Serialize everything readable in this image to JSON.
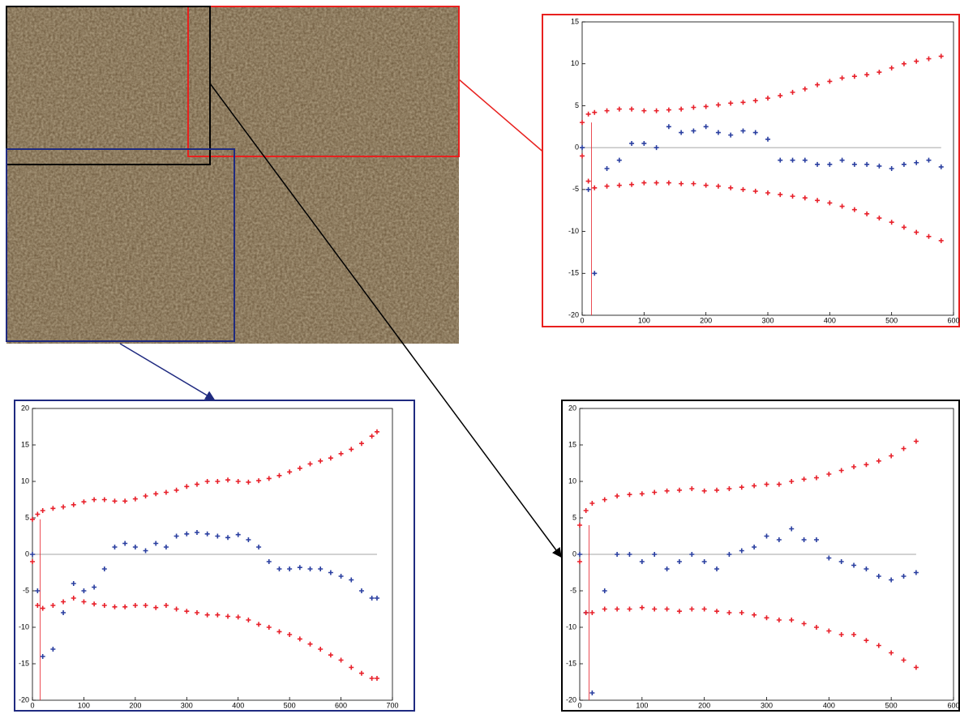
{
  "chart_data": [
    {
      "type": "scatter",
      "frame_color": "#e8201e",
      "xlim": [
        0,
        600
      ],
      "ylim": [
        -20,
        15
      ],
      "xticks": [
        0,
        100,
        200,
        300,
        400,
        500,
        600
      ],
      "yticks": [
        -20,
        -15,
        -10,
        -5,
        0,
        5,
        10,
        15
      ],
      "hline": 0,
      "vline": 15,
      "x": [
        0,
        10,
        20,
        40,
        60,
        80,
        100,
        120,
        140,
        160,
        180,
        200,
        220,
        240,
        260,
        280,
        300,
        320,
        340,
        360,
        380,
        400,
        420,
        440,
        460,
        480,
        500,
        520,
        540,
        560,
        580
      ],
      "series": [
        {
          "color": "#e8202a",
          "values": [
            3,
            4,
            4.2,
            4.4,
            4.6,
            4.6,
            4.4,
            4.4,
            4.5,
            4.6,
            4.8,
            4.9,
            5.1,
            5.3,
            5.4,
            5.6,
            5.9,
            6.2,
            6.6,
            7.0,
            7.5,
            7.9,
            8.3,
            8.5,
            8.7,
            9.0,
            9.5,
            10.0,
            10.3,
            10.6,
            10.9
          ]
        },
        {
          "color": "#2a3fa0",
          "values": [
            0,
            -5,
            -15,
            -2.5,
            -1.5,
            0.5,
            0.5,
            0,
            2.5,
            1.8,
            2,
            2.5,
            1.8,
            1.5,
            2,
            1.8,
            1,
            -1.5,
            -1.5,
            -1.5,
            -2,
            -2,
            -1.5,
            -2,
            -2,
            -2.2,
            -2.5,
            -2,
            -1.8,
            -1.5,
            -2.3
          ]
        },
        {
          "color": "#e8202a",
          "values": [
            -1,
            -4,
            -4.8,
            -4.6,
            -4.5,
            -4.4,
            -4.2,
            -4.2,
            -4.2,
            -4.3,
            -4.3,
            -4.5,
            -4.6,
            -4.8,
            -5.0,
            -5.2,
            -5.4,
            -5.6,
            -5.8,
            -6.0,
            -6.3,
            -6.6,
            -7.0,
            -7.4,
            -7.9,
            -8.4,
            -8.9,
            -9.5,
            -10.1,
            -10.6,
            -11.1
          ]
        }
      ]
    },
    {
      "type": "scatter",
      "frame_color": "#1f2a80",
      "xlim": [
        0,
        700
      ],
      "ylim": [
        -20,
        20
      ],
      "xticks": [
        0,
        100,
        200,
        300,
        400,
        500,
        600,
        700
      ],
      "yticks": [
        -20,
        -15,
        -10,
        -5,
        0,
        5,
        10,
        15,
        20
      ],
      "hline": 0,
      "vline": 15,
      "x": [
        0,
        10,
        20,
        40,
        60,
        80,
        100,
        120,
        140,
        160,
        180,
        200,
        220,
        240,
        260,
        280,
        300,
        320,
        340,
        360,
        380,
        400,
        420,
        440,
        460,
        480,
        500,
        520,
        540,
        560,
        580,
        600,
        620,
        640,
        660,
        670
      ],
      "series": [
        {
          "color": "#e8202a",
          "values": [
            4.8,
            5.5,
            6,
            6.3,
            6.5,
            6.8,
            7.2,
            7.5,
            7.5,
            7.3,
            7.3,
            7.6,
            8,
            8.3,
            8.5,
            8.8,
            9.3,
            9.6,
            10,
            10,
            10.2,
            10,
            9.9,
            10.1,
            10.4,
            10.8,
            11.3,
            11.8,
            12.4,
            12.8,
            13.2,
            13.8,
            14.4,
            15.2,
            16.2,
            16.8
          ]
        },
        {
          "color": "#2a3fa0",
          "values": [
            0,
            -5,
            -14,
            -13,
            -8,
            -4,
            -5,
            -4.5,
            -2,
            1,
            1.5,
            1,
            0.5,
            1.5,
            1,
            2.5,
            2.8,
            3,
            2.8,
            2.5,
            2.3,
            2.7,
            2,
            1,
            -1,
            -2,
            -2,
            -1.8,
            -2,
            -2,
            -2.5,
            -3,
            -3.5,
            -5,
            -6,
            -6
          ]
        },
        {
          "color": "#e8202a",
          "values": [
            -1,
            -7,
            -7.4,
            -7,
            -6.5,
            -6,
            -6.5,
            -6.8,
            -7,
            -7.2,
            -7.2,
            -7,
            -7,
            -7.3,
            -7,
            -7.5,
            -7.8,
            -8,
            -8.3,
            -8.3,
            -8.5,
            -8.6,
            -9,
            -9.6,
            -10,
            -10.6,
            -11,
            -11.6,
            -12.3,
            -13,
            -13.8,
            -14.5,
            -15.5,
            -16.3,
            -17,
            -17
          ]
        }
      ]
    },
    {
      "type": "scatter",
      "frame_color": "#000000",
      "xlim": [
        0,
        600
      ],
      "ylim": [
        -20,
        20
      ],
      "xticks": [
        0,
        100,
        200,
        300,
        400,
        500,
        600
      ],
      "yticks": [
        -20,
        -15,
        -10,
        -5,
        0,
        5,
        10,
        15,
        20
      ],
      "hline": 0,
      "vline": 15,
      "x": [
        0,
        10,
        20,
        40,
        60,
        80,
        100,
        120,
        140,
        160,
        180,
        200,
        220,
        240,
        260,
        280,
        300,
        320,
        340,
        360,
        380,
        400,
        420,
        440,
        460,
        480,
        500,
        520,
        540
      ],
      "series": [
        {
          "color": "#e8202a",
          "values": [
            4,
            6,
            7,
            7.5,
            8,
            8.2,
            8.3,
            8.5,
            8.7,
            8.8,
            9,
            8.7,
            8.8,
            9,
            9.2,
            9.4,
            9.6,
            9.6,
            10,
            10.3,
            10.5,
            11,
            11.5,
            12,
            12.3,
            12.8,
            13.5,
            14.5,
            15.5
          ]
        },
        {
          "color": "#2a3fa0",
          "values": [
            0,
            -8,
            -19,
            -5,
            0,
            0,
            -1,
            0,
            -2,
            -1,
            0,
            -1,
            -2,
            0,
            0.5,
            1,
            2.5,
            2,
            3.5,
            2,
            2,
            -0.5,
            -1,
            -1.5,
            -2,
            -3,
            -3.5,
            -3,
            -2.5
          ]
        },
        {
          "color": "#e8202a",
          "values": [
            -1,
            -8,
            -8,
            -7.5,
            -7.5,
            -7.5,
            -7.3,
            -7.5,
            -7.5,
            -7.8,
            -7.5,
            -7.5,
            -7.8,
            -8,
            -8,
            -8.3,
            -8.7,
            -9,
            -9,
            -9.5,
            -10,
            -10.5,
            -11,
            -11,
            -11.8,
            -12.5,
            -13.5,
            -14.5,
            -15.5
          ]
        }
      ]
    }
  ]
}
